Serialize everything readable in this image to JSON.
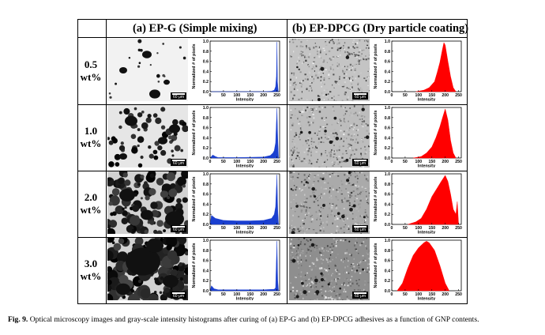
{
  "headers": {
    "a": "(a) EP-G (Simple mixing)",
    "b": "(b) EP-DPCG (Dry particle coating)"
  },
  "rows": [
    {
      "line1": "0.5",
      "line2": "wt%"
    },
    {
      "line1": "1.0",
      "line2": "wt%"
    },
    {
      "line1": "2.0",
      "line2": "wt%"
    },
    {
      "line1": "3.0",
      "line2": "wt%"
    }
  ],
  "scale_bar_label": "60 μm",
  "histogram": {
    "ylabel": "Normalized # of pixels",
    "xlabel": "Intensity",
    "yticks": [
      "0.0",
      "0.2",
      "0.4",
      "0.6",
      "0.8",
      "1.0"
    ],
    "xticks_a": [
      "0",
      "50",
      "100",
      "150",
      "200",
      "250"
    ],
    "xticks_b": [
      "0",
      "50",
      "100",
      "150",
      "200",
      "250"
    ]
  },
  "colors": {
    "blue": "#1a3fd0",
    "red": "#ff0000"
  },
  "caption": {
    "label": "Fig. 9.",
    "text": "Optical microscopy images and gray-scale intensity histograms after curing of (a) EP-G and (b) EP-DPCG adhesives as a function of GNP contents."
  },
  "chart_data": [
    {
      "type": "area",
      "panel": "a-0.5wt",
      "series": [
        {
          "x": [
            0,
            200,
            230,
            240,
            245,
            248,
            250,
            252,
            255
          ],
          "y": [
            0,
            0,
            0.01,
            0.03,
            0.1,
            0.3,
            0.98,
            0.2,
            0
          ]
        }
      ],
      "xlim": [
        0,
        260
      ],
      "ylim": [
        0,
        1
      ]
    },
    {
      "type": "area",
      "panel": "b-0.5wt",
      "series": [
        {
          "x": [
            90,
            120,
            140,
            160,
            170,
            180,
            190,
            195,
            200,
            210,
            220,
            230,
            240
          ],
          "y": [
            0,
            0.03,
            0.08,
            0.2,
            0.38,
            0.58,
            0.85,
            0.97,
            0.92,
            0.6,
            0.3,
            0.08,
            0
          ]
        }
      ],
      "xlim": [
        0,
        260
      ],
      "ylim": [
        0,
        1
      ]
    },
    {
      "type": "area",
      "panel": "a-1.0wt",
      "series": [
        {
          "x": [
            0,
            10,
            20,
            30,
            100,
            200,
            225,
            235,
            240,
            245,
            250,
            253,
            256
          ],
          "y": [
            0,
            0.06,
            0.03,
            0.01,
            0.01,
            0.02,
            0.05,
            0.1,
            0.15,
            0.3,
            0.98,
            0.4,
            0
          ]
        }
      ],
      "xlim": [
        0,
        260
      ],
      "ylim": [
        0,
        1
      ]
    },
    {
      "type": "area",
      "panel": "b-1.0wt",
      "series": [
        {
          "x": [
            80,
            110,
            130,
            150,
            165,
            180,
            190,
            200,
            210,
            220,
            230,
            240
          ],
          "y": [
            0,
            0.03,
            0.1,
            0.22,
            0.4,
            0.62,
            0.8,
            0.97,
            0.75,
            0.35,
            0.1,
            0
          ]
        }
      ],
      "xlim": [
        0,
        260
      ],
      "ylim": [
        0,
        1
      ]
    },
    {
      "type": "area",
      "panel": "a-2.0wt",
      "series": [
        {
          "x": [
            0,
            5,
            20,
            50,
            100,
            150,
            200,
            230,
            240,
            245,
            250,
            253,
            256
          ],
          "y": [
            0,
            0.18,
            0.12,
            0.08,
            0.07,
            0.07,
            0.08,
            0.12,
            0.2,
            0.35,
            0.98,
            0.3,
            0
          ]
        }
      ],
      "xlim": [
        0,
        260
      ],
      "ylim": [
        0,
        1
      ]
    },
    {
      "type": "area",
      "panel": "b-2.0wt",
      "series": [
        {
          "x": [
            60,
            90,
            110,
            130,
            150,
            170,
            185,
            200,
            210,
            220,
            230,
            240,
            245,
            250
          ],
          "y": [
            0,
            0.05,
            0.12,
            0.3,
            0.55,
            0.72,
            0.85,
            0.97,
            0.85,
            0.6,
            0.3,
            0.2,
            0.45,
            0
          ]
        }
      ],
      "xlim": [
        0,
        260
      ],
      "ylim": [
        0,
        1
      ]
    },
    {
      "type": "area",
      "panel": "a-3.0wt",
      "series": [
        {
          "x": [
            0,
            5,
            15,
            30,
            100,
            200,
            240,
            245,
            250,
            253,
            256
          ],
          "y": [
            0,
            0.1,
            0.04,
            0.02,
            0.02,
            0.02,
            0.03,
            0.06,
            0.98,
            0.2,
            0
          ]
        }
      ],
      "xlim": [
        0,
        260
      ],
      "ylim": [
        0,
        1
      ]
    },
    {
      "type": "area",
      "panel": "b-3.0wt",
      "series": [
        {
          "x": [
            20,
            40,
            60,
            80,
            100,
            120,
            130,
            140,
            160,
            180,
            200,
            215
          ],
          "y": [
            0,
            0.15,
            0.45,
            0.7,
            0.85,
            0.95,
            0.98,
            0.95,
            0.8,
            0.5,
            0.15,
            0
          ]
        }
      ],
      "xlim": [
        0,
        260
      ],
      "ylim": [
        0,
        1
      ]
    }
  ]
}
